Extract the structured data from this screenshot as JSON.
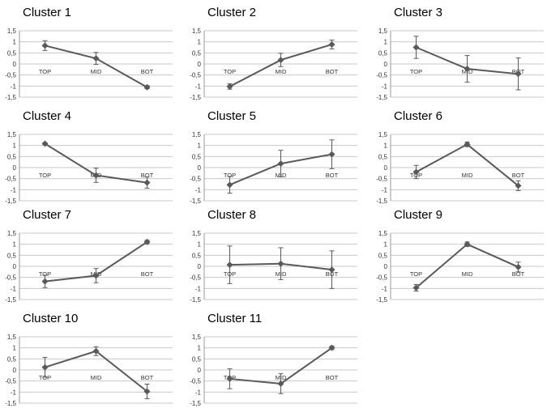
{
  "figure": {
    "panel_count": 11,
    "shared_axis": {
      "ylim": [
        -1.5,
        1.5
      ],
      "yticks": [
        "1,5",
        "1",
        "0,5",
        "0",
        "-0,5",
        "-1",
        "-1,5"
      ],
      "grid": "horizontal"
    },
    "line_color": "#595959",
    "grid_color": "#c8c8c8"
  },
  "chart_data": [
    {
      "type": "line",
      "title": "Cluster 1",
      "categories": [
        "TOP",
        "MID",
        "BOT"
      ],
      "values": [
        0.83,
        0.25,
        -1.05
      ],
      "error": [
        0.22,
        0.27,
        0.07
      ],
      "ylim": [
        -1.5,
        1.5
      ],
      "yticks": [
        "1,5",
        "1",
        "0,5",
        "0",
        "-0,5",
        "-1",
        "-1,5"
      ]
    },
    {
      "type": "line",
      "title": "Cluster 2",
      "categories": [
        "TOP",
        "MID",
        "BOT"
      ],
      "values": [
        -1.02,
        0.18,
        0.88
      ],
      "error": [
        0.12,
        0.3,
        0.2
      ],
      "ylim": [
        -1.5,
        1.5
      ],
      "yticks": [
        "1,5",
        "1",
        "0,5",
        "0",
        "-0,5",
        "-1",
        "-1,5"
      ]
    },
    {
      "type": "line",
      "title": "Cluster 3",
      "categories": [
        "TOP",
        "MID",
        "BOT"
      ],
      "values": [
        0.75,
        -0.22,
        -0.45
      ],
      "error": [
        0.5,
        0.6,
        0.72
      ],
      "ylim": [
        -1.5,
        1.5
      ],
      "yticks": [
        "1,5",
        "1",
        "0,5",
        "0",
        "-0,5",
        "-1",
        "-1,5"
      ]
    },
    {
      "type": "line",
      "title": "Cluster 4",
      "categories": [
        "TOP",
        "MID",
        "BOT"
      ],
      "values": [
        1.08,
        -0.35,
        -0.68
      ],
      "error": [
        0.04,
        0.32,
        0.25
      ],
      "ylim": [
        -1.5,
        1.5
      ],
      "yticks": [
        "1,5",
        "1",
        "0,5",
        "0",
        "-0,5",
        "-1",
        "-1,5"
      ]
    },
    {
      "type": "line",
      "title": "Cluster 5",
      "categories": [
        "TOP",
        "MID",
        "BOT"
      ],
      "values": [
        -0.78,
        0.18,
        0.6
      ],
      "error": [
        0.38,
        0.6,
        0.65
      ],
      "ylim": [
        -1.5,
        1.5
      ],
      "yticks": [
        "1,5",
        "1",
        "0,5",
        "0",
        "-0,5",
        "-1",
        "-1,5"
      ]
    },
    {
      "type": "line",
      "title": "Cluster 6",
      "categories": [
        "TOP",
        "MID",
        "BOT"
      ],
      "values": [
        -0.2,
        1.05,
        -0.82
      ],
      "error": [
        0.3,
        0.1,
        0.22
      ],
      "ylim": [
        -1.5,
        1.5
      ],
      "yticks": [
        "1,5",
        "1",
        "0,5",
        "0",
        "-0,5",
        "-1",
        "-1,5"
      ]
    },
    {
      "type": "line",
      "title": "Cluster 7",
      "categories": [
        "TOP",
        "MID",
        "BOT"
      ],
      "values": [
        -0.68,
        -0.42,
        1.1
      ],
      "error": [
        0.28,
        0.32,
        0.08
      ],
      "ylim": [
        -1.5,
        1.5
      ],
      "yticks": [
        "1,5",
        "1",
        "0,5",
        "0",
        "-0,5",
        "-1",
        "-1,5"
      ]
    },
    {
      "type": "line",
      "title": "Cluster 8",
      "categories": [
        "TOP",
        "MID",
        "BOT"
      ],
      "values": [
        0.07,
        0.12,
        -0.15
      ],
      "error": [
        0.85,
        0.72,
        0.85
      ],
      "ylim": [
        -1.5,
        1.5
      ],
      "yticks": [
        "1,5",
        "1",
        "0,5",
        "0",
        "-0,5",
        "-1",
        "-1,5"
      ]
    },
    {
      "type": "line",
      "title": "Cluster 9",
      "categories": [
        "TOP",
        "MID",
        "BOT"
      ],
      "values": [
        -0.97,
        1.0,
        -0.03
      ],
      "error": [
        0.15,
        0.1,
        0.22
      ],
      "ylim": [
        -1.5,
        1.5
      ],
      "yticks": [
        "1,5",
        "1",
        "0,5",
        "0",
        "-0,5",
        "-1",
        "-1,5"
      ]
    },
    {
      "type": "line",
      "title": "Cluster 10",
      "categories": [
        "TOP",
        "MID",
        "BOT"
      ],
      "values": [
        0.12,
        0.85,
        -0.97
      ],
      "error": [
        0.45,
        0.2,
        0.33
      ],
      "ylim": [
        -1.5,
        1.5
      ],
      "yticks": [
        "1,5",
        "1",
        "0,5",
        "0",
        "-0,5",
        "-1",
        "-1,5"
      ]
    },
    {
      "type": "line",
      "title": "Cluster 11",
      "categories": [
        "TOP",
        "MID",
        "BOT"
      ],
      "values": [
        -0.4,
        -0.62,
        1.0
      ],
      "error": [
        0.45,
        0.45,
        0.08
      ],
      "ylim": [
        -1.5,
        1.5
      ],
      "yticks": [
        "1,5",
        "1",
        "0,5",
        "0",
        "-0,5",
        "-1",
        "-1,5"
      ]
    }
  ]
}
